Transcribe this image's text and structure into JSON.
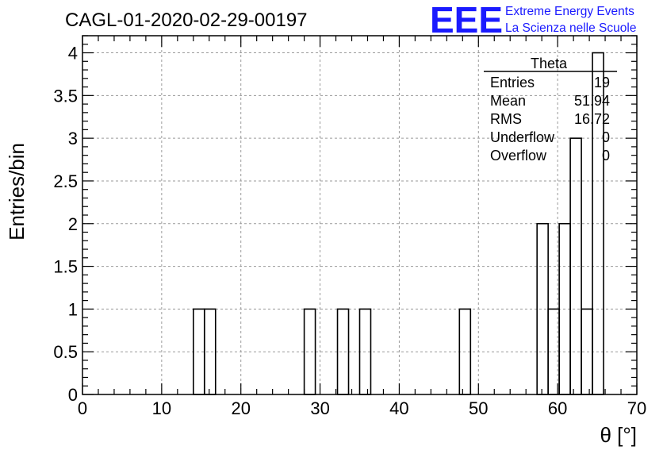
{
  "chart_data": {
    "type": "bar",
    "title": "CAGL-01-2020-02-29-00197",
    "xlabel": "θ [°]",
    "ylabel": "Entries/bin",
    "xlim": [
      0,
      70
    ],
    "ylim": [
      0,
      4.2
    ],
    "bin_width": 1.4,
    "x_ticks": [
      0,
      10,
      20,
      30,
      40,
      50,
      60,
      70
    ],
    "y_ticks": [
      0,
      0.5,
      1,
      1.5,
      2,
      2.5,
      3,
      3.5,
      4
    ],
    "x_tick_labels": [
      "0",
      "10",
      "20",
      "30",
      "40",
      "50",
      "60",
      "70"
    ],
    "y_tick_labels": [
      "0",
      "0.5",
      "1",
      "1.5",
      "2",
      "2.5",
      "3",
      "3.5",
      "4"
    ],
    "grid": true,
    "bins": [
      {
        "x": 14.0,
        "value": 1
      },
      {
        "x": 15.4,
        "value": 1
      },
      {
        "x": 28.0,
        "value": 1
      },
      {
        "x": 32.2,
        "value": 1
      },
      {
        "x": 35.0,
        "value": 1
      },
      {
        "x": 47.6,
        "value": 1
      },
      {
        "x": 57.4,
        "value": 2
      },
      {
        "x": 58.8,
        "value": 1
      },
      {
        "x": 60.2,
        "value": 2
      },
      {
        "x": 61.6,
        "value": 3
      },
      {
        "x": 63.0,
        "value": 1
      },
      {
        "x": 64.4,
        "value": 4
      }
    ],
    "stats": {
      "name": "Theta",
      "rows": [
        {
          "label": "Entries",
          "value": "19"
        },
        {
          "label": "Mean",
          "value": "51.94"
        },
        {
          "label": "RMS",
          "value": "16.72"
        },
        {
          "label": "Underflow",
          "value": "0"
        },
        {
          "label": "Overflow",
          "value": "0"
        }
      ],
      "placement": "top-right"
    },
    "line_color": "#000000"
  },
  "logo": {
    "big": "EEE",
    "line1": "Extreme Energy Events",
    "line2": "La Scienza nelle Scuole",
    "color": "#1a1aff"
  }
}
